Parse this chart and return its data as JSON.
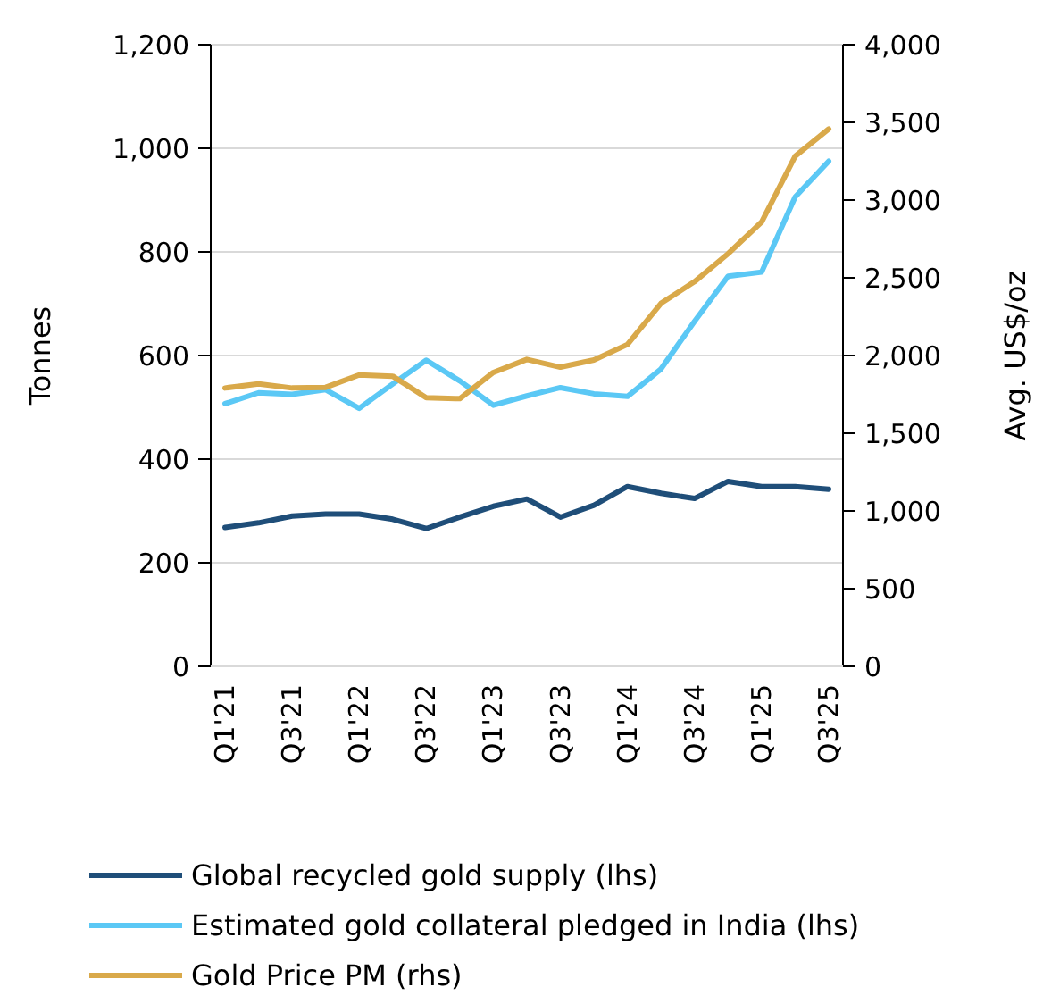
{
  "chart_data": {
    "type": "line",
    "ylabel": "Tonnes",
    "y2label": "Avg. US$/oz",
    "categories": [
      "Q1'21",
      null,
      "Q3'21",
      null,
      "Q1'22",
      null,
      "Q3'22",
      null,
      "Q1'23",
      null,
      "Q3'23",
      null,
      "Q1'24",
      null,
      "Q3'24",
      null,
      "Q1'25",
      null,
      "Q3'25"
    ],
    "series": [
      {
        "name": "Global recycled gold supply (lhs)",
        "color": "#1f4e79",
        "values": [
          268,
          277,
          290,
          294,
          294,
          284,
          266,
          288,
          309,
          323,
          288,
          311,
          347,
          334,
          324,
          357,
          347,
          347,
          342
        ]
      },
      {
        "name": "Estimated gold collateral pledged in India (lhs)",
        "color": "#5bc8f5",
        "values": [
          507,
          528,
          525,
          534,
          498,
          545,
          591,
          551,
          504,
          522,
          538,
          526,
          521,
          574,
          666,
          753,
          761,
          906,
          975
        ]
      },
      {
        "name": "Gold Price PM (rhs)",
        "color": "#d9a94a",
        "axis": "y2",
        "values": [
          1791,
          1818,
          1791,
          1795,
          1875,
          1867,
          1729,
          1722,
          1891,
          1975,
          1925,
          1971,
          2071,
          2336,
          2475,
          2655,
          2859,
          3282,
          3458
        ]
      }
    ],
    "ylim": [
      0,
      1200
    ],
    "yticks": [
      0,
      200,
      400,
      600,
      800,
      {
        "value": 1000,
        "label": "1,000"
      },
      {
        "value": 1200,
        "label": "1,200"
      }
    ],
    "y2lim": [
      0,
      4000
    ],
    "y2ticks": [
      0,
      500,
      {
        "value": 1000,
        "label": "1,000"
      },
      {
        "value": 1500,
        "label": "1,500"
      },
      {
        "value": 2000,
        "label": "2,000"
      },
      {
        "value": 2500,
        "label": "2,500"
      },
      {
        "value": 3000,
        "label": "3,000"
      },
      {
        "value": 3500,
        "label": "3,500"
      },
      {
        "value": 4000,
        "label": "4,000"
      }
    ],
    "grid": "y",
    "legend": "bottom",
    "marker": "none",
    "line_style": "solid"
  }
}
